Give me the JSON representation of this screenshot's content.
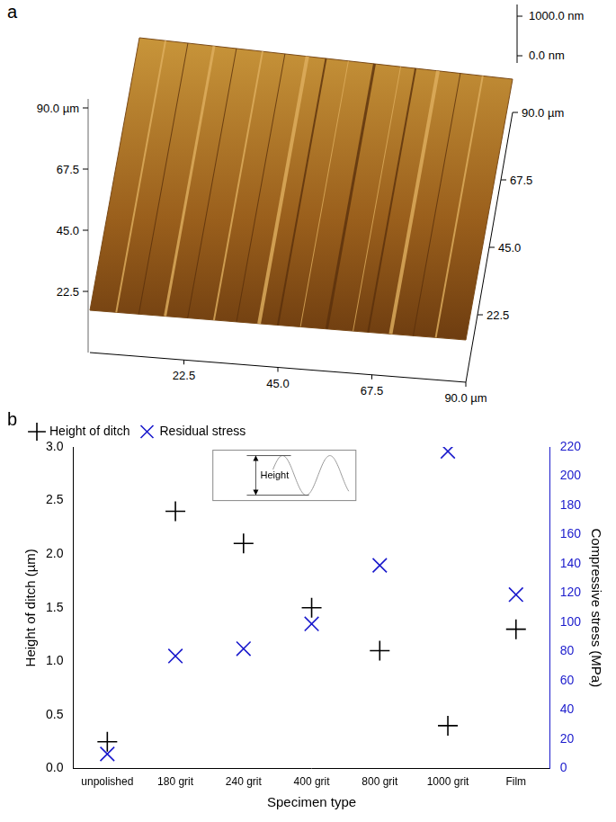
{
  "panel_labels": [
    "a",
    "b"
  ],
  "surface_image": {
    "z_labels": [
      "1000.0 nm",
      "0.0 nm"
    ],
    "front_axis_ticks": [
      "22.5",
      "45.0",
      "67.5",
      "90.0 µm"
    ],
    "left_axis_ticks": [
      "22.5",
      "45.0",
      "67.5",
      "90.0 µm"
    ],
    "right_axis_ticks": [
      "22.5",
      "45.0",
      "67.5",
      "90.0 µm"
    ]
  },
  "chart_data": {
    "type": "scatter",
    "x_label": "Specimen type",
    "y_label": "Height of ditch (µm)",
    "y2_label": "Compressive stress (MPa)",
    "annotation": "Height",
    "categories": [
      "unpolished",
      "180 grit",
      "240 grit",
      "400 grit",
      "800 grit",
      "1000 grit",
      "Film"
    ],
    "series": [
      {
        "name": "Height of ditch",
        "color": "#000000",
        "marker": "plus",
        "values": [
          0.25,
          2.4,
          2.1,
          1.5,
          1.1,
          0.4,
          1.3
        ]
      },
      {
        "name": "Residual stress",
        "color": "#1a1acc",
        "marker": "x",
        "axis": "y2",
        "values": [
          10,
          77,
          82,
          99,
          139,
          217,
          119
        ]
      }
    ],
    "ylim": [
      0,
      3
    ],
    "yticks": [
      {
        "value": 0,
        "label": "0.0"
      },
      {
        "value": 0.5,
        "label": "0.5"
      },
      {
        "value": 1,
        "label": "1.0"
      },
      {
        "value": 1.5,
        "label": "1.5"
      },
      {
        "value": 2,
        "label": "2.0"
      },
      {
        "value": 2.5,
        "label": "2.5"
      },
      {
        "value": 3,
        "label": "3.0"
      }
    ],
    "y2lim": [
      0,
      220
    ],
    "y2ticks": [
      0,
      20,
      40,
      60,
      80,
      100,
      120,
      140,
      160,
      180,
      200,
      220
    ],
    "legend": "upper left",
    "grid": false
  }
}
